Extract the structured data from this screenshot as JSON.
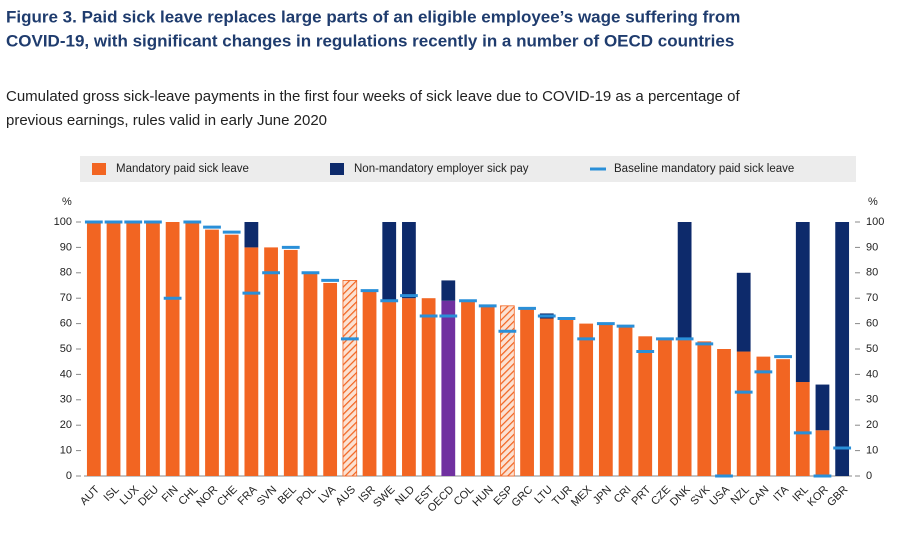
{
  "chart_data": {
    "type": "bar",
    "title_lines": [
      "Figure 3. Paid sick leave replaces large parts of an eligible employee’s wage suffering from",
      "COVID-19, with significant changes in regulations recently in a number of OECD countries"
    ],
    "subtitle_lines": [
      "Cumulated gross sick-leave payments in the first four weeks of sick leave due to COVID-19 as a percentage of",
      "previous earnings, rules valid in early June 2020"
    ],
    "ylabel": "%",
    "y2label": "%",
    "categories": [
      "AUT",
      "ISL",
      "LUX",
      "DEU",
      "FIN",
      "CHL",
      "NOR",
      "CHE",
      "FRA",
      "SVN",
      "BEL",
      "POL",
      "LVA",
      "AUS",
      "ISR",
      "SWE",
      "NLD",
      "EST",
      "OECD",
      "COL",
      "HUN",
      "ESP",
      "GRC",
      "LTU",
      "TUR",
      "MEX",
      "JPN",
      "CRI",
      "PRT",
      "CZE",
      "DNK",
      "SVK",
      "USA",
      "NZL",
      "CAN",
      "ITA",
      "IRL",
      "KOR",
      "GBR"
    ],
    "series": [
      {
        "name": "Mandatory paid sick leave",
        "color": "#f26522",
        "values": [
          100,
          100,
          100,
          100,
          100,
          100,
          97,
          95,
          90,
          90,
          89,
          80,
          76,
          77,
          73,
          69,
          70,
          70,
          69,
          69,
          67,
          67,
          66,
          62,
          62,
          60,
          60,
          59,
          55,
          54,
          54,
          53,
          50,
          49,
          47,
          46,
          37,
          18,
          0
        ]
      },
      {
        "name": "Non-mandatory employer sick pay",
        "color": "#0d2a6b",
        "values": [
          0,
          0,
          0,
          0,
          0,
          0,
          0,
          0,
          10,
          0,
          0,
          0,
          0,
          0,
          0,
          31,
          30,
          0,
          8,
          0,
          0,
          0,
          0,
          2,
          0,
          0,
          0,
          0,
          0,
          0,
          46,
          0,
          0,
          31,
          0,
          0,
          63,
          18,
          100
        ]
      },
      {
        "name": "Baseline mandatory paid sick leave",
        "color": "#2a8fd8",
        "values": [
          100,
          100,
          100,
          100,
          70,
          100,
          98,
          96,
          72,
          80,
          90,
          80,
          77,
          54,
          73,
          69,
          71,
          63,
          63,
          69,
          67,
          57,
          66,
          63,
          62,
          54,
          60,
          59,
          49,
          54,
          54,
          52,
          0,
          33,
          41,
          47,
          17,
          0,
          11
        ]
      }
    ],
    "hatched": [
      13,
      21
    ],
    "highlight": 18,
    "highlight_color": "#7030a0",
    "ylim": [
      0,
      100
    ],
    "yticks": [
      0,
      10,
      20,
      30,
      40,
      50,
      60,
      70,
      80,
      90,
      100
    ],
    "y2lim": [
      0,
      100
    ],
    "y2ticks": [
      0,
      10,
      20,
      30,
      40,
      50,
      60,
      70,
      80,
      90,
      100
    ]
  }
}
